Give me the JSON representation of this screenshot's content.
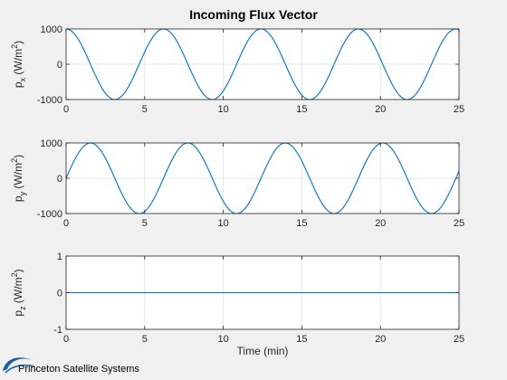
{
  "figure": {
    "title": "Incoming Flux Vector",
    "background": "#f0f0f0",
    "axes_background": "#ffffff",
    "line_color": "#0072bd",
    "grid_color": "#e6e6e6",
    "logo_text": "Princeton Satellite Systems",
    "logo_icon": "orbit-swoosh-icon"
  },
  "chart_data": [
    {
      "type": "line",
      "name": "px",
      "ylabel_main": "p",
      "ylabel_sub": "x",
      "ylabel_units": "(W/m",
      "ylabel_sup": "2",
      "ylabel_close": ")",
      "xlabel": "",
      "xlim": [
        0,
        25
      ],
      "ylim": [
        -1000,
        1000
      ],
      "xticks": [
        0,
        5,
        10,
        15,
        20,
        25
      ],
      "yticks": [
        -1000,
        0,
        1000
      ],
      "xtick_labels": [
        "0",
        "5",
        "10",
        "15",
        "20",
        "25"
      ],
      "ytick_labels": [
        "-1000",
        "0",
        "1000"
      ],
      "grid": true,
      "function": "cos",
      "amplitude": 1000,
      "period_min": 6.2
    },
    {
      "type": "line",
      "name": "py",
      "ylabel_main": "p",
      "ylabel_sub": "y",
      "ylabel_units": "(W/m",
      "ylabel_sup": "2",
      "ylabel_close": ")",
      "xlabel": "",
      "xlim": [
        0,
        25
      ],
      "ylim": [
        -1000,
        1000
      ],
      "xticks": [
        0,
        5,
        10,
        15,
        20,
        25
      ],
      "yticks": [
        -1000,
        0,
        1000
      ],
      "xtick_labels": [
        "0",
        "5",
        "10",
        "15",
        "20",
        "25"
      ],
      "ytick_labels": [
        "-1000",
        "0",
        "1000"
      ],
      "grid": true,
      "function": "sin",
      "amplitude": 1000,
      "period_min": 6.2
    },
    {
      "type": "line",
      "name": "pz",
      "ylabel_main": "p",
      "ylabel_sub": "z",
      "ylabel_units": "(W/m",
      "ylabel_sup": "2",
      "ylabel_close": ")",
      "xlabel": "Time (min)",
      "xlim": [
        0,
        25
      ],
      "ylim": [
        -1,
        1
      ],
      "xticks": [
        0,
        5,
        10,
        15,
        20,
        25
      ],
      "yticks": [
        -1,
        0,
        1
      ],
      "xtick_labels": [
        "0",
        "5",
        "10",
        "15",
        "20",
        "25"
      ],
      "ytick_labels": [
        "-1",
        "0",
        "1"
      ],
      "grid": true,
      "function": "zero",
      "amplitude": 0,
      "period_min": 6.2
    }
  ]
}
